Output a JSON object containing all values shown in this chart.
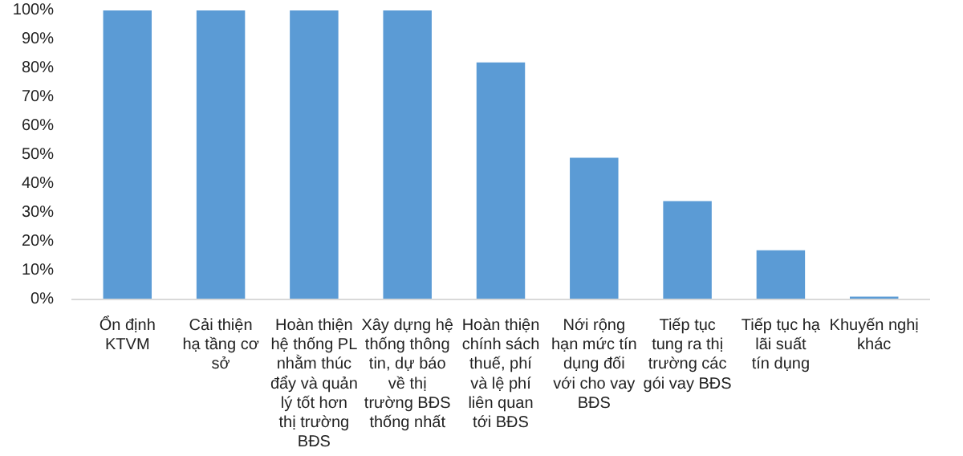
{
  "chart_data": {
    "type": "bar",
    "categories": [
      "Ổn định KTVM",
      "Cải thiện hạ tầng cơ sở",
      "Hoàn thiện hệ thống PL nhằm thúc đẩy và quản lý tốt hơn thị trường BĐS",
      "Xây dựng hệ thống thông tin, dự báo về thị trường BĐS thống nhất",
      "Hoàn thiện chính sách thuế, phí và lệ phí liên quan tới BĐS",
      "Nới rộng hạn mức tín dụng đối với cho vay BĐS",
      "Tiếp tục tung ra thị trường các gói vay BĐS",
      "Tiếp tục hạ lãi suất tín dụng",
      "Khuyến nghị khác"
    ],
    "values": [
      100,
      100,
      100,
      100,
      82,
      49,
      34,
      17,
      1
    ],
    "color": "#5b9bd5",
    "ylim": [
      0,
      100
    ],
    "yticks": [
      {
        "value": 0,
        "label": "0%"
      },
      {
        "value": 10,
        "label": "10%"
      },
      {
        "value": 20,
        "label": "20%"
      },
      {
        "value": 30,
        "label": "30%"
      },
      {
        "value": 40,
        "label": "40%"
      },
      {
        "value": 50,
        "label": "50%"
      },
      {
        "value": 60,
        "label": "60%"
      },
      {
        "value": 70,
        "label": "70%"
      },
      {
        "value": 80,
        "label": "80%"
      },
      {
        "value": 90,
        "label": "90%"
      },
      {
        "value": 100,
        "label": "100%"
      }
    ],
    "grid": false
  }
}
